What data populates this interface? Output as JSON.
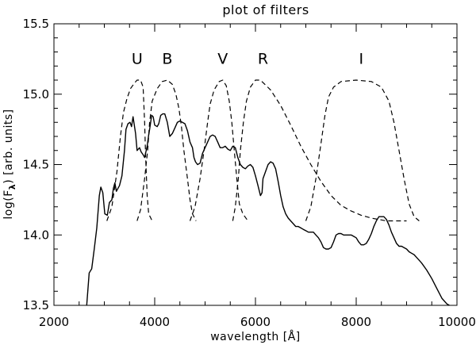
{
  "chart_data": {
    "type": "line",
    "title": "plot of filters",
    "xlabel": "wavelength [Å]",
    "ylabel": "log(F_λ) [arb. units]",
    "ylabel_parts": {
      "main": "log(F",
      "sub": "λ",
      "tail": ") [arb. units]"
    },
    "xlim": [
      2000,
      10000
    ],
    "ylim": [
      13.5,
      15.5
    ],
    "xticks": [
      2000,
      4000,
      6000,
      8000,
      10000
    ],
    "xtick_labels": [
      "2000",
      "4000",
      "6000",
      "8000",
      "10000"
    ],
    "yticks": [
      13.5,
      14.0,
      14.5,
      15.0,
      15.5
    ],
    "ytick_labels": [
      "13.5",
      "14.0",
      "14.5",
      "15.0",
      "15.5"
    ],
    "grid": false,
    "filter_labels": [
      {
        "text": "U",
        "x": 3650,
        "y": 15.25
      },
      {
        "text": "B",
        "x": 4250,
        "y": 15.25
      },
      {
        "text": "V",
        "x": 5350,
        "y": 15.25
      },
      {
        "text": "R",
        "x": 6150,
        "y": 15.25
      },
      {
        "text": "I",
        "x": 8100,
        "y": 15.25
      }
    ],
    "series": [
      {
        "style": "solid",
        "points": [
          [
            2650,
            13.5
          ],
          [
            2700,
            13.73
          ],
          [
            2750,
            13.76
          ],
          [
            2800,
            13.9
          ],
          [
            2850,
            14.05
          ],
          [
            2900,
            14.28
          ],
          [
            2930,
            14.34
          ],
          [
            2970,
            14.3
          ],
          [
            3010,
            14.15
          ],
          [
            3060,
            14.14
          ],
          [
            3100,
            14.23
          ],
          [
            3150,
            14.25
          ],
          [
            3180,
            14.33
          ],
          [
            3210,
            14.37
          ],
          [
            3240,
            14.31
          ],
          [
            3300,
            14.35
          ],
          [
            3350,
            14.42
          ],
          [
            3400,
            14.6
          ],
          [
            3430,
            14.75
          ],
          [
            3470,
            14.79
          ],
          [
            3510,
            14.8
          ],
          [
            3540,
            14.77
          ],
          [
            3570,
            14.84
          ],
          [
            3620,
            14.72
          ],
          [
            3650,
            14.6
          ],
          [
            3700,
            14.62
          ],
          [
            3730,
            14.59
          ],
          [
            3770,
            14.57
          ],
          [
            3800,
            14.55
          ],
          [
            3850,
            14.63
          ],
          [
            3880,
            14.71
          ],
          [
            3900,
            14.75
          ],
          [
            3940,
            14.85
          ],
          [
            3970,
            14.84
          ],
          [
            4000,
            14.78
          ],
          [
            4050,
            14.77
          ],
          [
            4080,
            14.79
          ],
          [
            4120,
            14.85
          ],
          [
            4160,
            14.86
          ],
          [
            4200,
            14.86
          ],
          [
            4250,
            14.8
          ],
          [
            4300,
            14.7
          ],
          [
            4350,
            14.72
          ],
          [
            4400,
            14.76
          ],
          [
            4450,
            14.8
          ],
          [
            4500,
            14.81
          ],
          [
            4550,
            14.8
          ],
          [
            4600,
            14.79
          ],
          [
            4650,
            14.74
          ],
          [
            4700,
            14.66
          ],
          [
            4750,
            14.62
          ],
          [
            4780,
            14.55
          ],
          [
            4810,
            14.52
          ],
          [
            4850,
            14.5
          ],
          [
            4900,
            14.51
          ],
          [
            4950,
            14.58
          ],
          [
            5000,
            14.62
          ],
          [
            5050,
            14.66
          ],
          [
            5100,
            14.7
          ],
          [
            5150,
            14.71
          ],
          [
            5200,
            14.7
          ],
          [
            5250,
            14.66
          ],
          [
            5300,
            14.62
          ],
          [
            5350,
            14.62
          ],
          [
            5400,
            14.63
          ],
          [
            5450,
            14.61
          ],
          [
            5500,
            14.6
          ],
          [
            5550,
            14.63
          ],
          [
            5600,
            14.62
          ],
          [
            5650,
            14.55
          ],
          [
            5700,
            14.5
          ],
          [
            5750,
            14.48
          ],
          [
            5800,
            14.47
          ],
          [
            5850,
            14.49
          ],
          [
            5900,
            14.5
          ],
          [
            5950,
            14.48
          ],
          [
            6000,
            14.42
          ],
          [
            6050,
            14.35
          ],
          [
            6100,
            14.28
          ],
          [
            6130,
            14.3
          ],
          [
            6150,
            14.4
          ],
          [
            6200,
            14.45
          ],
          [
            6250,
            14.5
          ],
          [
            6300,
            14.52
          ],
          [
            6350,
            14.51
          ],
          [
            6400,
            14.47
          ],
          [
            6450,
            14.38
          ],
          [
            6500,
            14.28
          ],
          [
            6550,
            14.2
          ],
          [
            6600,
            14.15
          ],
          [
            6650,
            14.12
          ],
          [
            6700,
            14.1
          ],
          [
            6750,
            14.08
          ],
          [
            6800,
            14.06
          ],
          [
            6850,
            14.06
          ],
          [
            6900,
            14.05
          ],
          [
            6950,
            14.04
          ],
          [
            7000,
            14.03
          ],
          [
            7050,
            14.02
          ],
          [
            7100,
            14.02
          ],
          [
            7150,
            14.02
          ],
          [
            7200,
            14.0
          ],
          [
            7250,
            13.98
          ],
          [
            7300,
            13.95
          ],
          [
            7350,
            13.91
          ],
          [
            7400,
            13.9
          ],
          [
            7450,
            13.9
          ],
          [
            7500,
            13.91
          ],
          [
            7550,
            13.95
          ],
          [
            7600,
            14.0
          ],
          [
            7650,
            14.01
          ],
          [
            7700,
            14.01
          ],
          [
            7750,
            14.0
          ],
          [
            7800,
            14.0
          ],
          [
            7850,
            14.0
          ],
          [
            7900,
            14.0
          ],
          [
            7950,
            13.99
          ],
          [
            8000,
            13.98
          ],
          [
            8050,
            13.95
          ],
          [
            8100,
            13.93
          ],
          [
            8150,
            13.93
          ],
          [
            8200,
            13.94
          ],
          [
            8250,
            13.97
          ],
          [
            8300,
            14.01
          ],
          [
            8350,
            14.06
          ],
          [
            8400,
            14.1
          ],
          [
            8450,
            14.13
          ],
          [
            8500,
            14.13
          ],
          [
            8550,
            14.13
          ],
          [
            8600,
            14.11
          ],
          [
            8650,
            14.07
          ],
          [
            8700,
            14.02
          ],
          [
            8750,
            13.98
          ],
          [
            8800,
            13.94
          ],
          [
            8850,
            13.92
          ],
          [
            8900,
            13.92
          ],
          [
            8950,
            13.91
          ],
          [
            9000,
            13.9
          ],
          [
            9050,
            13.88
          ],
          [
            9100,
            13.87
          ],
          [
            9150,
            13.86
          ],
          [
            9200,
            13.84
          ],
          [
            9250,
            13.82
          ],
          [
            9300,
            13.8
          ],
          [
            9400,
            13.75
          ],
          [
            9500,
            13.69
          ],
          [
            9600,
            13.62
          ],
          [
            9700,
            13.55
          ],
          [
            9800,
            13.51
          ],
          [
            9850,
            13.5
          ]
        ]
      },
      {
        "name": "U",
        "style": "dashed",
        "points": [
          [
            3050,
            14.1
          ],
          [
            3150,
            14.2
          ],
          [
            3250,
            14.45
          ],
          [
            3320,
            14.7
          ],
          [
            3380,
            14.87
          ],
          [
            3450,
            14.97
          ],
          [
            3520,
            15.04
          ],
          [
            3600,
            15.08
          ],
          [
            3650,
            15.1
          ],
          [
            3720,
            15.1
          ],
          [
            3770,
            15.05
          ],
          [
            3800,
            14.8
          ],
          [
            3820,
            14.55
          ],
          [
            3850,
            14.28
          ],
          [
            3880,
            14.15
          ],
          [
            3950,
            14.1
          ]
        ]
      },
      {
        "name": "B",
        "style": "dashed",
        "points": [
          [
            3650,
            14.1
          ],
          [
            3720,
            14.18
          ],
          [
            3800,
            14.4
          ],
          [
            3860,
            14.6
          ],
          [
            3900,
            14.8
          ],
          [
            3950,
            14.95
          ],
          [
            4050,
            15.04
          ],
          [
            4150,
            15.09
          ],
          [
            4250,
            15.1
          ],
          [
            4350,
            15.07
          ],
          [
            4420,
            15.0
          ],
          [
            4480,
            14.9
          ],
          [
            4530,
            14.77
          ],
          [
            4580,
            14.6
          ],
          [
            4650,
            14.4
          ],
          [
            4700,
            14.25
          ],
          [
            4750,
            14.15
          ],
          [
            4820,
            14.1
          ]
        ]
      },
      {
        "name": "V",
        "style": "dashed",
        "points": [
          [
            4700,
            14.1
          ],
          [
            4800,
            14.2
          ],
          [
            4900,
            14.4
          ],
          [
            4980,
            14.6
          ],
          [
            5050,
            14.8
          ],
          [
            5100,
            14.93
          ],
          [
            5180,
            15.03
          ],
          [
            5280,
            15.09
          ],
          [
            5350,
            15.1
          ],
          [
            5420,
            15.06
          ],
          [
            5480,
            14.95
          ],
          [
            5530,
            14.8
          ],
          [
            5580,
            14.6
          ],
          [
            5630,
            14.4
          ],
          [
            5680,
            14.22
          ],
          [
            5750,
            14.15
          ],
          [
            5850,
            14.1
          ]
        ]
      },
      {
        "name": "R",
        "style": "dashed",
        "points": [
          [
            5550,
            14.1
          ],
          [
            5600,
            14.2
          ],
          [
            5660,
            14.4
          ],
          [
            5700,
            14.6
          ],
          [
            5760,
            14.8
          ],
          [
            5820,
            14.95
          ],
          [
            5900,
            15.05
          ],
          [
            6000,
            15.1
          ],
          [
            6100,
            15.1
          ],
          [
            6300,
            15.03
          ],
          [
            6500,
            14.92
          ],
          [
            6700,
            14.78
          ],
          [
            6900,
            14.63
          ],
          [
            7100,
            14.5
          ],
          [
            7300,
            14.38
          ],
          [
            7500,
            14.28
          ],
          [
            7700,
            14.21
          ],
          [
            7900,
            14.17
          ],
          [
            8100,
            14.14
          ],
          [
            8300,
            14.12
          ],
          [
            8600,
            14.1
          ],
          [
            9000,
            14.1
          ]
        ]
      },
      {
        "name": "I",
        "style": "dashed",
        "points": [
          [
            7000,
            14.1
          ],
          [
            7100,
            14.2
          ],
          [
            7200,
            14.4
          ],
          [
            7300,
            14.65
          ],
          [
            7380,
            14.85
          ],
          [
            7450,
            14.98
          ],
          [
            7550,
            15.05
          ],
          [
            7700,
            15.09
          ],
          [
            8000,
            15.1
          ],
          [
            8300,
            15.09
          ],
          [
            8500,
            15.05
          ],
          [
            8650,
            14.95
          ],
          [
            8750,
            14.8
          ],
          [
            8850,
            14.6
          ],
          [
            8950,
            14.4
          ],
          [
            9050,
            14.22
          ],
          [
            9150,
            14.13
          ],
          [
            9250,
            14.1
          ]
        ]
      }
    ]
  }
}
